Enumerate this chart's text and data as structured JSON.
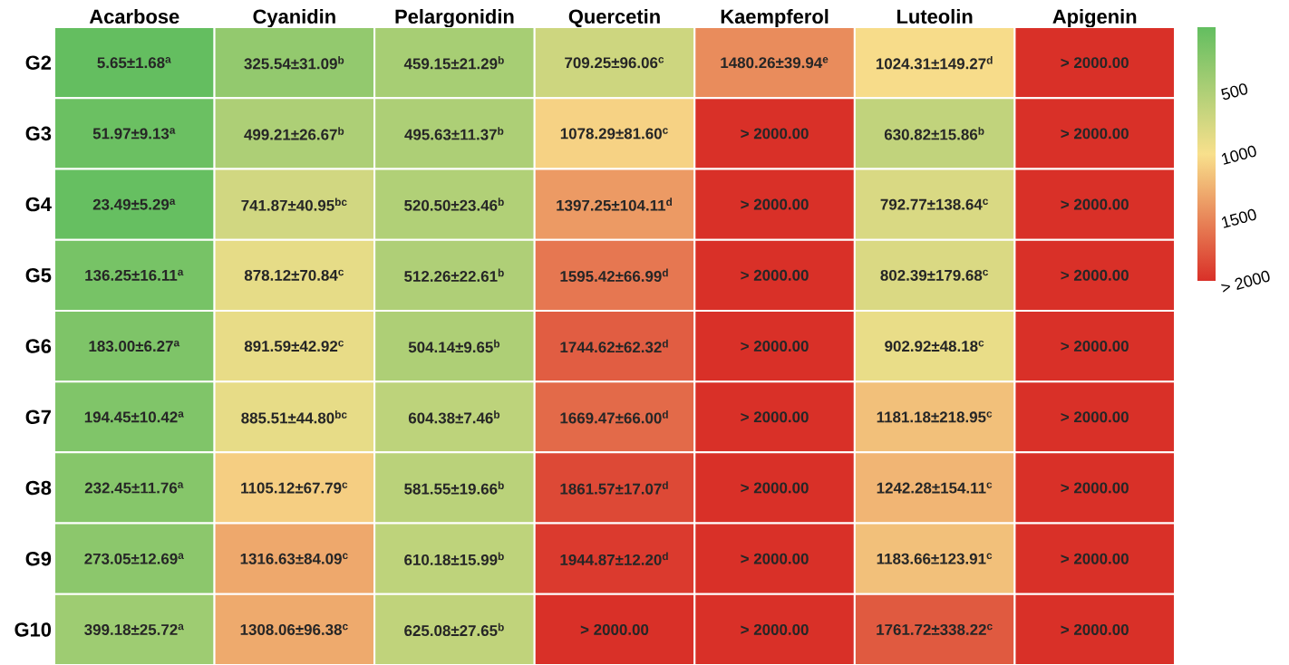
{
  "chart_data": {
    "type": "heatmap",
    "categories": [
      "Acarbose",
      "Cyanidin",
      "Pelargonidin",
      "Quercetin",
      "Kaempferol",
      "Luteolin",
      "Apigenin"
    ],
    "y_categories": [
      "G2",
      "G3",
      "G4",
      "G5",
      "G6",
      "G7",
      "G8",
      "G9",
      "G10"
    ],
    "cells": [
      [
        5.65,
        325.54,
        459.15,
        709.25,
        1480.26,
        1024.31,
        2000
      ],
      [
        51.97,
        499.21,
        495.63,
        1078.29,
        2000,
        630.82,
        2000
      ],
      [
        23.49,
        741.87,
        520.5,
        1397.25,
        2000,
        792.77,
        2000
      ],
      [
        136.25,
        878.12,
        512.26,
        1595.42,
        2000,
        802.39,
        2000
      ],
      [
        183.0,
        891.59,
        504.14,
        1744.62,
        2000,
        902.92,
        2000
      ],
      [
        194.45,
        885.51,
        604.38,
        1669.47,
        2000,
        1181.18,
        2000
      ],
      [
        232.45,
        1105.12,
        581.55,
        1861.57,
        2000,
        1242.28,
        2000
      ],
      [
        273.05,
        1316.63,
        610.18,
        1944.87,
        2000,
        1183.66,
        2000
      ],
      [
        399.18,
        1308.06,
        625.08,
        2000,
        2000,
        1761.72,
        2000
      ]
    ],
    "cell_labels": [
      [
        "5.65±1.68$^{a}$",
        "325.54±31.09$^{b}$",
        "459.15±21.29$^{b}$",
        "709.25±96.06$^{c}$",
        "1480.26±39.94$^{e}$",
        "1024.31±149.27$^{d}$",
        "> 2000.00"
      ],
      [
        "51.97±9.13$^{a}$",
        "499.21±26.67$^{b}$",
        "495.63±11.37$^{b}$",
        "1078.29±81.60$^{c}$",
        "> 2000.00",
        "630.82±15.86$^{b}$",
        "> 2000.00"
      ],
      [
        "23.49±5.29$^{a}$",
        "741.87±40.95$^{bc}$",
        "520.50±23.46$^{b}$",
        "1397.25±104.11$^{d}$",
        "> 2000.00",
        "792.77±138.64$^{c}$",
        "> 2000.00"
      ],
      [
        "136.25±16.11$^{a}$",
        "878.12±70.84$^{c}$",
        "512.26±22.61$^{b}$",
        "1595.42±66.99$^{d}$",
        "> 2000.00",
        "802.39±179.68$^{c}$",
        "> 2000.00"
      ],
      [
        "183.00±6.27$^{a}$",
        "891.59±42.92$^{c}$",
        "504.14±9.65$^{b}$",
        "1744.62±62.32$^{d}$",
        "> 2000.00",
        "902.92±48.18$^{c}$",
        "> 2000.00"
      ],
      [
        "194.45±10.42$^{a}$",
        "885.51±44.80$^{bc}$",
        "604.38±7.46$^{b}$",
        "1669.47±66.00$^{d}$",
        "> 2000.00",
        "1181.18±218.95$^{c}$",
        "> 2000.00"
      ],
      [
        "232.45±11.76$^{a}$",
        "1105.12±67.79$^{c}$",
        "581.55±19.66$^{b}$",
        "1861.57±17.07$^{d}$",
        "> 2000.00",
        "1242.28±154.11$^{c}$",
        "> 2000.00"
      ],
      [
        "273.05±12.69$^{a}$",
        "1316.63±84.09$^{c}$",
        "610.18±15.99$^{b}$",
        "1944.87±12.20$^{d}$",
        "> 2000.00",
        "1183.66±123.91$^{c}$",
        "> 2000.00"
      ],
      [
        "399.18±25.72$^{a}$",
        "1308.06±96.38$^{c}$",
        "625.08±27.65$^{b}$",
        "> 2000.00",
        "> 2000.00",
        "1761.72±338.22$^{c}$",
        "> 2000.00"
      ]
    ],
    "clim": [
      0,
      2000
    ],
    "cticks": [
      500,
      1000,
      1500,
      {
        "value": 2000,
        "label": "> 2000"
      }
    ]
  }
}
